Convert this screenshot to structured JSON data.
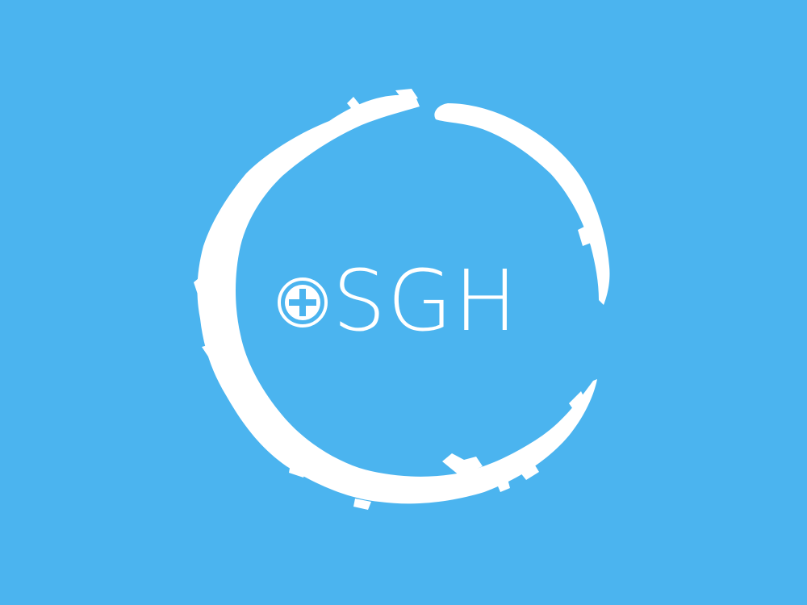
{
  "logo": {
    "brand_text": "SGH",
    "background_color": "#4BB4EF",
    "foreground_color": "#FFFFFF",
    "ring_icon": "brush-circle-icon",
    "cross_icon": "circled-plus-icon"
  }
}
